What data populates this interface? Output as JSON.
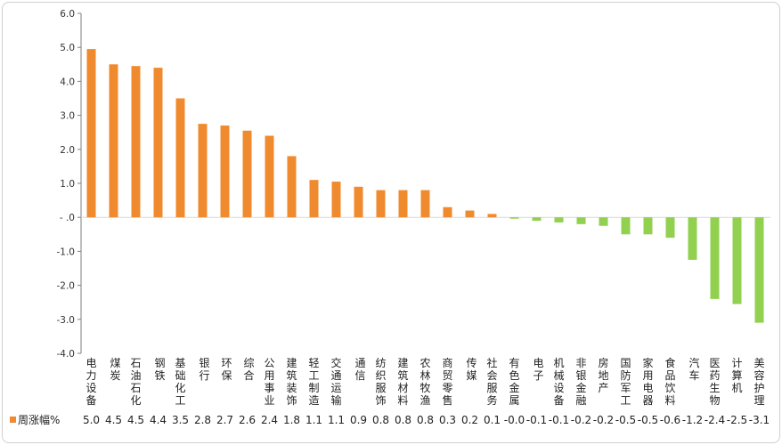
{
  "chart_data": {
    "type": "bar",
    "title": "",
    "xlabel": "",
    "ylabel": "",
    "ylim": [
      -4.0,
      6.0
    ],
    "yticks": [
      -4.0,
      -3.0,
      -2.0,
      -1.0,
      0,
      1.0,
      2.0,
      3.0,
      4.0,
      5.0,
      6.0
    ],
    "ytick_labels": [
      "-4.0",
      "-3.0",
      "-2.0",
      "-1.0",
      "- .0",
      "1.0",
      "2.0",
      "3.0",
      "4.0",
      "5.0",
      "6.0"
    ],
    "grid": false,
    "legend": "bottom-left, as data-table key",
    "categories": [
      "电力设备",
      "煤炭",
      "石油石化",
      "钢铁",
      "基础化工",
      "银行",
      "环保",
      "综合",
      "公用事业",
      "建筑装饰",
      "轻工制造",
      "交通运输",
      "通信",
      "纺织服饰",
      "建筑材料",
      "农林牧渔",
      "商贸零售",
      "传媒",
      "社会服务",
      "有色金属",
      "电子",
      "机械设备",
      "非银金融",
      "房地产",
      "国防军工",
      "家用电器",
      "食品饮料",
      "汽车",
      "医药生物",
      "计算机",
      "美容护理"
    ],
    "series": [
      {
        "name": "周涨幅%",
        "values": [
          4.95,
          4.5,
          4.45,
          4.4,
          3.5,
          2.75,
          2.7,
          2.55,
          2.4,
          1.8,
          1.1,
          1.05,
          0.9,
          0.8,
          0.8,
          0.8,
          0.3,
          0.2,
          0.1,
          -0.04,
          -0.1,
          -0.15,
          -0.2,
          -0.25,
          -0.5,
          -0.5,
          -0.6,
          -1.25,
          -2.4,
          -2.55,
          -3.1
        ],
        "value_labels": [
          "5.0",
          "4.5",
          "4.5",
          "4.4",
          "3.5",
          "2.8",
          "2.7",
          "2.6",
          "2.4",
          "1.8",
          "1.1",
          "1.1",
          "0.9",
          "0.8",
          "0.8",
          "0.8",
          "0.3",
          "0.2",
          "0.1",
          "-0.0",
          "-0.1",
          "-0.1",
          "-0.2",
          "-0.2",
          "-0.5",
          "-0.5",
          "-0.6",
          "-1.2",
          "-2.4",
          "-2.5",
          "-3.1"
        ]
      }
    ],
    "colors": {
      "positive": "#F08A2E",
      "negative": "#92D050",
      "axis": "#7f7f7f"
    }
  }
}
